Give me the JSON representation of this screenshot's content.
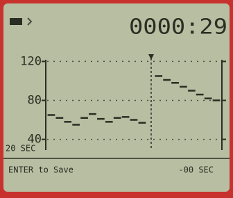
{
  "chart_data": {
    "type": "line",
    "clock": "0000:29",
    "window_label": "20 SEC",
    "prompt": "ENTER to Save",
    "offset_label": "-00 SEC",
    "categories": [
      null,
      null,
      null,
      null,
      null,
      null,
      null,
      null,
      null,
      null,
      null,
      null,
      null,
      null,
      null,
      null,
      null,
      null,
      null,
      null,
      null
    ],
    "values": [
      65,
      62,
      58,
      55,
      62,
      66,
      61,
      58,
      62,
      63,
      60,
      57,
      null,
      105,
      101,
      98,
      94,
      90,
      86,
      82,
      80
    ],
    "color": "#2a2e22",
    "ylim": [
      29,
      126
    ],
    "yticks": [
      40,
      80,
      120
    ],
    "grid": true
  }
}
